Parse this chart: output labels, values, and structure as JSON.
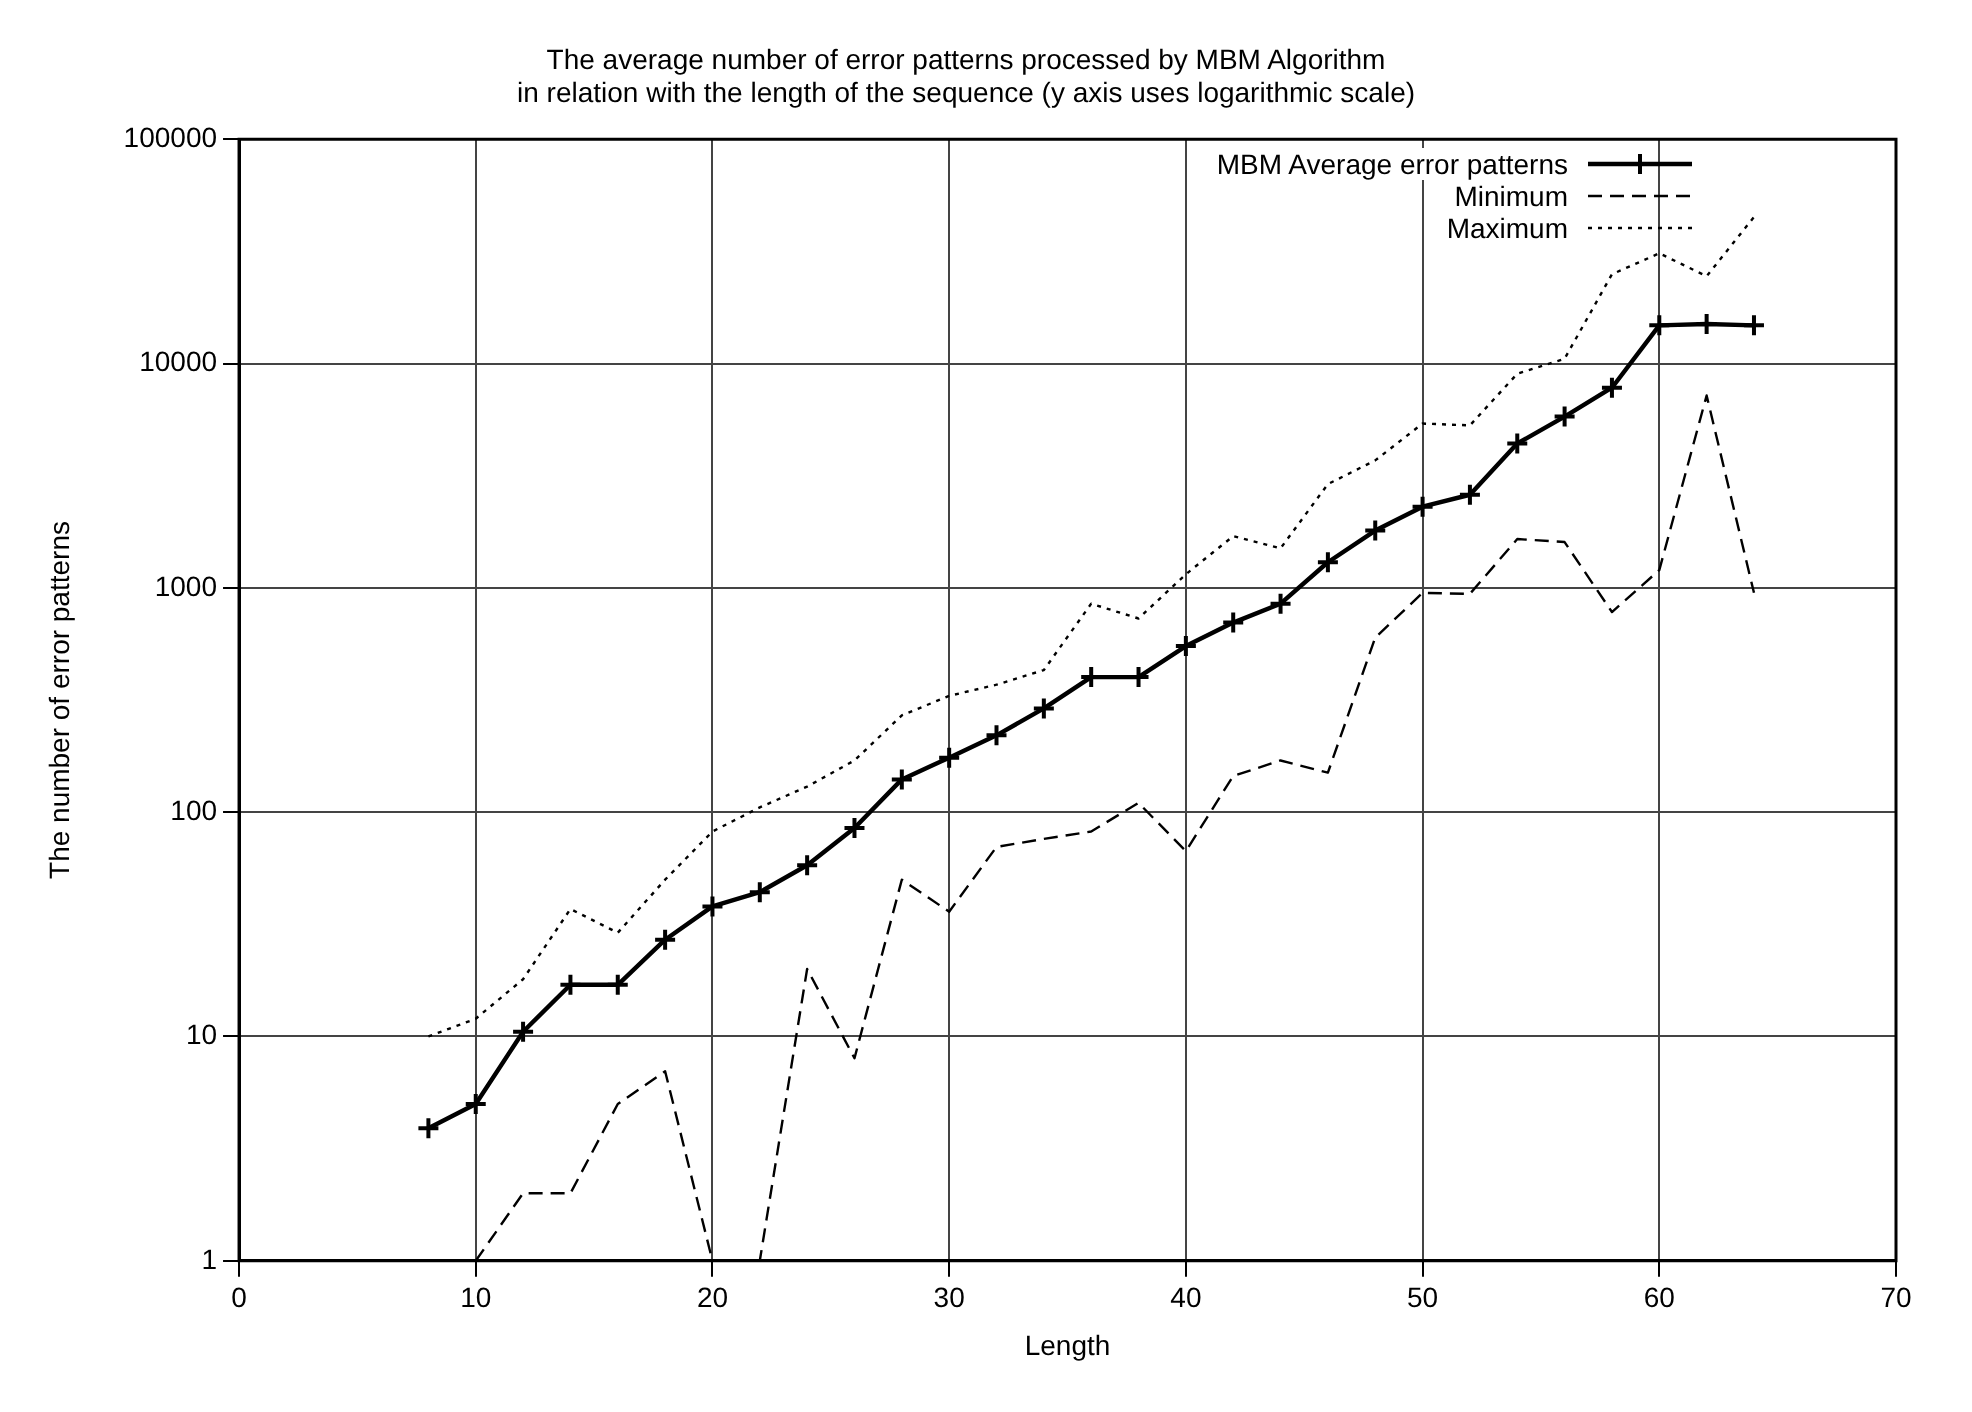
{
  "chart_data": {
    "type": "line",
    "title": "The average number of error patterns processed by MBM Algorithm\nin relation with the length of the sequence (y axis uses logarithmic scale)",
    "xlabel": "Length",
    "ylabel": "The number of error patterns",
    "x": [
      8,
      10,
      12,
      14,
      16,
      18,
      20,
      22,
      24,
      26,
      28,
      30,
      32,
      34,
      36,
      38,
      40,
      42,
      44,
      46,
      48,
      50,
      52,
      54,
      56,
      58,
      60,
      62,
      64
    ],
    "series": [
      {
        "name": "MBM Average error patterns",
        "color": "#000000",
        "marker": "cross",
        "line_style": "solid",
        "values": [
          3.9,
          5,
          10.5,
          17,
          17,
          27,
          38,
          44,
          58,
          85,
          140,
          175,
          220,
          290,
          400,
          400,
          550,
          700,
          850,
          1300,
          1800,
          2300,
          2600,
          4400,
          5800,
          7800,
          14800,
          15000,
          14800
        ]
      },
      {
        "name": "Minimum",
        "color": "#000000",
        "marker": "none",
        "line_style": "dashed",
        "values": [
          null,
          1,
          2,
          2,
          5,
          7,
          1,
          1,
          20,
          8,
          50,
          36,
          70,
          76,
          82,
          110,
          67,
          145,
          170,
          150,
          600,
          950,
          940,
          1650,
          1600,
          780,
          1200,
          7200,
          950
        ]
      },
      {
        "name": "Maximum",
        "color": "#000000",
        "marker": "none",
        "line_style": "dotted",
        "values": [
          10,
          12,
          18,
          37,
          29,
          50,
          82,
          105,
          130,
          170,
          270,
          330,
          370,
          430,
          850,
          730,
          1150,
          1700,
          1500,
          2900,
          3700,
          5400,
          5300,
          9000,
          10500,
          25000,
          31000,
          24500,
          45000
        ]
      }
    ],
    "xlim": [
      0,
      70
    ],
    "xticks": [
      0,
      10,
      20,
      30,
      40,
      50,
      60,
      70
    ],
    "ylim": [
      1,
      100000
    ],
    "yticks": [
      1,
      10,
      100,
      1000,
      10000,
      100000
    ],
    "log": "y",
    "grid": true,
    "legend": "top right"
  }
}
